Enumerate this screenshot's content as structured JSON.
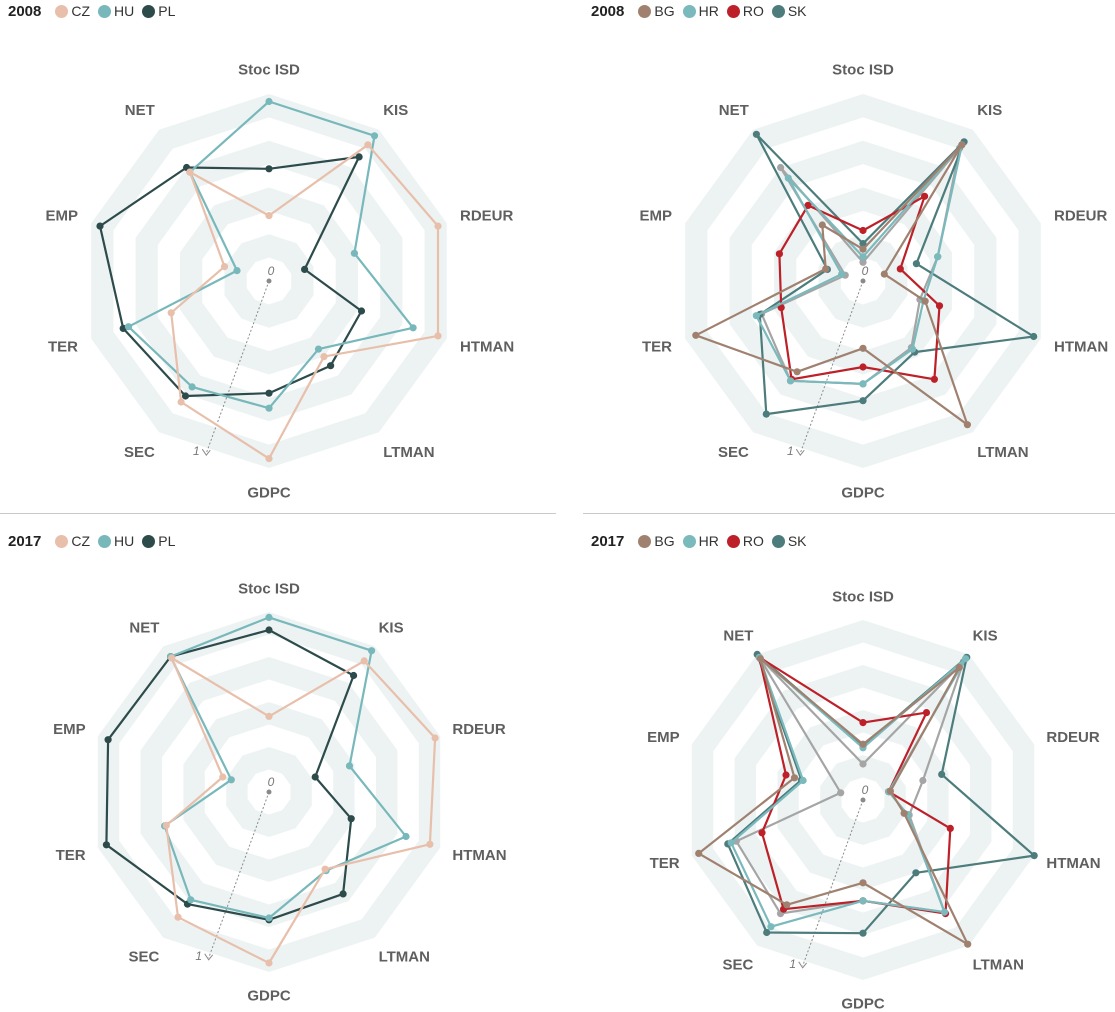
{
  "chart_data": [
    {
      "type": "radar",
      "year": "2008",
      "axes": [
        "Stoc ISD",
        "KIS",
        "RDEUR",
        "HTMAN",
        "LTMAN",
        "GDPC",
        "SEC",
        "TER",
        "EMP",
        "NET"
      ],
      "scale": {
        "center_label": "0",
        "outer_label": "1",
        "rings": 8
      },
      "series": [
        {
          "name": "CZ",
          "color": "#e8bfab",
          "values": [
            0.35,
            0.9,
            0.95,
            0.95,
            0.5,
            0.95,
            0.8,
            0.55,
            0.25,
            0.72
          ]
        },
        {
          "name": "HU",
          "color": "#78b8bb",
          "values": [
            0.96,
            0.96,
            0.48,
            0.81,
            0.45,
            0.68,
            0.7,
            0.79,
            0.18,
            0.72
          ]
        },
        {
          "name": "PL",
          "color": "#2e4b4c",
          "values": [
            0.6,
            0.82,
            0.2,
            0.52,
            0.56,
            0.6,
            0.76,
            0.82,
            0.95,
            0.75
          ]
        }
      ]
    },
    {
      "type": "radar",
      "year": "2008",
      "axes": [
        "Stoc ISD",
        "KIS",
        "RDEUR",
        "HTMAN",
        "LTMAN",
        "GDPC",
        "SEC",
        "TER",
        "EMP",
        "NET"
      ],
      "scale": {
        "center_label": "0",
        "outer_label": "1",
        "rings": 8
      },
      "series": [
        {
          "name": "BG",
          "color": "#a08170",
          "values": [
            0.17,
            0.9,
            0.12,
            0.35,
            0.95,
            0.36,
            0.6,
            0.94,
            0.21,
            0.37
          ]
        },
        {
          "name": "HR",
          "color": "#7ab9bc",
          "values": [
            0.13,
            0.9,
            0.42,
            0.34,
            0.45,
            0.55,
            0.66,
            0.6,
            0.12,
            0.68
          ]
        },
        {
          "name": "RO",
          "color": "#bd2028",
          "values": [
            0.27,
            0.56,
            0.21,
            0.43,
            0.65,
            0.46,
            0.65,
            0.46,
            0.47,
            0.5
          ]
        },
        {
          "name": "SK",
          "color": "#4d7c7c",
          "values": [
            0.2,
            0.92,
            0.3,
            0.96,
            0.47,
            0.64,
            0.88,
            0.58,
            0.2,
            0.97
          ]
        },
        {
          "name": "",
          "color": "#a5a5a5",
          "values": [
            0.1,
            0.88,
            0.42,
            0.32,
            0.44,
            0.55,
            0.66,
            0.57,
            0.1,
            0.75
          ]
        }
      ]
    },
    {
      "type": "radar",
      "year": "2017",
      "axes": [
        "Stoc ISD",
        "KIS",
        "RDEUR",
        "HTMAN",
        "LTMAN",
        "GDPC",
        "SEC",
        "TER",
        "EMP",
        "NET"
      ],
      "scale": {
        "center_label": "0",
        "outer_label": "1",
        "rings": 8
      },
      "series": [
        {
          "name": "CZ",
          "color": "#e8bfab",
          "values": [
            0.42,
            0.9,
            0.97,
            0.94,
            0.53,
            0.95,
            0.86,
            0.6,
            0.27,
            0.92
          ]
        },
        {
          "name": "HU",
          "color": "#78b8bb",
          "values": [
            0.97,
            0.97,
            0.47,
            0.8,
            0.54,
            0.7,
            0.74,
            0.61,
            0.22,
            0.93
          ]
        },
        {
          "name": "PL",
          "color": "#2e4b4c",
          "values": [
            0.9,
            0.8,
            0.27,
            0.48,
            0.7,
            0.71,
            0.77,
            0.95,
            0.94,
            0.93
          ]
        }
      ]
    },
    {
      "type": "radar",
      "year": "2017",
      "axes": [
        "Stoc ISD",
        "KIS",
        "RDEUR",
        "HTMAN",
        "LTMAN",
        "GDPC",
        "SEC",
        "TER",
        "EMP",
        "NET"
      ],
      "scale": {
        "center_label": "0",
        "outer_label": "1",
        "rings": 8
      },
      "series": [
        {
          "name": "BG",
          "color": "#a08170",
          "values": [
            0.31,
            0.91,
            0.16,
            0.24,
            0.99,
            0.46,
            0.72,
            0.96,
            0.4,
            0.97
          ]
        },
        {
          "name": "HR",
          "color": "#7ab9bc",
          "values": [
            0.29,
            0.97,
            0.15,
            0.26,
            0.77,
            0.56,
            0.87,
            0.77,
            0.35,
            0.98
          ]
        },
        {
          "name": "RO",
          "color": "#bd2028",
          "values": [
            0.43,
            0.6,
            0.15,
            0.51,
            0.78,
            0.56,
            0.75,
            0.59,
            0.45,
            0.98
          ]
        },
        {
          "name": "SK",
          "color": "#4d7c7c",
          "values": [
            0.3,
            0.98,
            0.46,
            1.0,
            0.5,
            0.74,
            0.91,
            0.79,
            0.36,
            1.0
          ]
        },
        {
          "name": "",
          "color": "#a5a5a5",
          "values": [
            0.2,
            0.95,
            0.35,
            0.27,
            0.77,
            0.56,
            0.78,
            0.74,
            0.13,
            0.98
          ]
        }
      ]
    }
  ]
}
